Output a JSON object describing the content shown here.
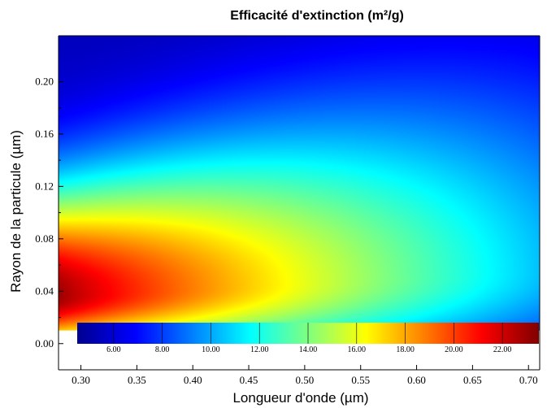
{
  "chart_data": {
    "type": "heatmap",
    "title": "Efficacité d'extinction (m²/g)",
    "xlabel": "Longueur d'onde (µm)",
    "ylabel": "Rayon de la particule (µm)",
    "xlim": [
      0.28,
      0.71
    ],
    "ylim": [
      -0.02,
      0.235
    ],
    "data_y_range": [
      0.01,
      0.235
    ],
    "x_ticks": [
      0.3,
      0.35,
      0.4,
      0.45,
      0.5,
      0.55,
      0.6,
      0.65,
      0.7
    ],
    "x_tick_labels": [
      "0.30",
      "0.35",
      "0.40",
      "0.45",
      "0.50",
      "0.55",
      "0.60",
      "0.65",
      "0.70"
    ],
    "y_ticks": [
      0.0,
      0.04,
      0.08,
      0.12,
      0.16,
      0.2
    ],
    "y_tick_labels": [
      "0.00",
      "0.04",
      "0.08",
      "0.12",
      "0.16",
      "0.20"
    ],
    "colormap": "jet",
    "colorbar": {
      "range": [
        4.5,
        23.5
      ],
      "ticks": [
        6,
        8,
        10,
        12,
        14,
        16,
        18,
        20,
        22
      ],
      "tick_labels": [
        "6.00",
        "8.00",
        "10.00",
        "12.00",
        "14.00",
        "16.00",
        "18.00",
        "20.00",
        "22.00"
      ],
      "placement": "bottom-inside"
    },
    "field": {
      "description_points": [
        {
          "x": 0.28,
          "y": 0.04,
          "value": 22.5
        },
        {
          "x": 0.4,
          "y": 0.05,
          "value": 16.5
        },
        {
          "x": 0.5,
          "y": 0.04,
          "value": 13.0
        },
        {
          "x": 0.7,
          "y": 0.03,
          "value": 10.0
        },
        {
          "x": 0.3,
          "y": 0.2,
          "value": 6.0
        },
        {
          "x": 0.7,
          "y": 0.2,
          "value": 5.0
        }
      ]
    }
  }
}
